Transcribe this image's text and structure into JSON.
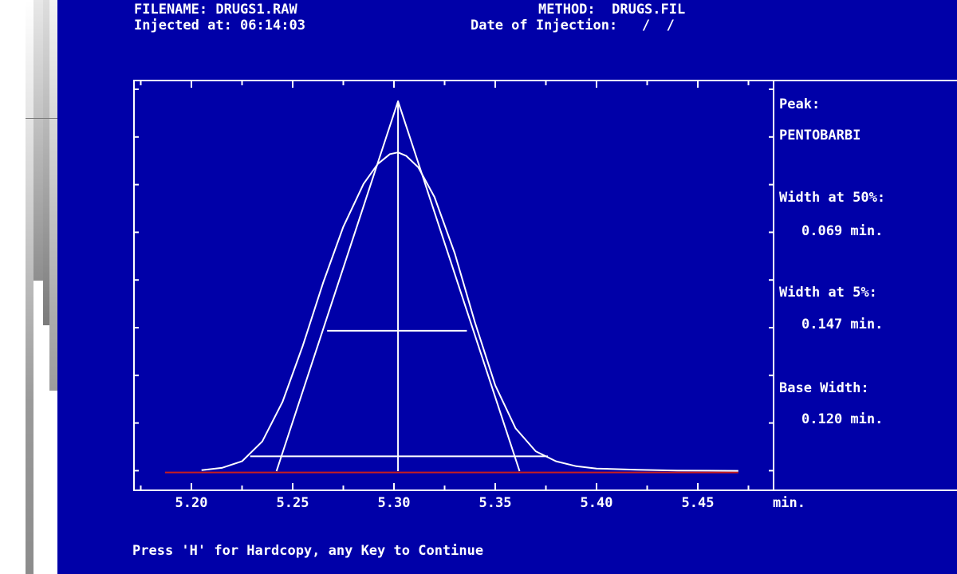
{
  "header": {
    "filename_line": "FILENAME: DRUGS1.RAW",
    "injected_line": "Injected at: 06:14:03",
    "method_line": "METHOD:  DRUGS.FIL",
    "date_line": "Date of Injection:   /  /"
  },
  "side_panel": {
    "peak_label": "Peak:",
    "peak_name": "PENTOBARBI",
    "width50_label": "Width at 50%:",
    "width50_value": "0.069 min.",
    "width5_label": "Width at 5%:",
    "width5_value": "0.147 min.",
    "base_label": "Base Width:",
    "base_value": "0.120 min."
  },
  "footer": {
    "prompt": "Press 'H' for Hardcopy, any Key to Continue"
  },
  "colors": {
    "background": "#0000a8",
    "trace": "#ffffff",
    "baseline": "#c81e1e"
  },
  "chart_data": {
    "type": "line",
    "x_unit_label": "min.",
    "x_ticks": [
      "5.20",
      "5.25",
      "5.30",
      "5.35",
      "5.40",
      "5.45"
    ],
    "xlim": [
      5.175,
      5.48
    ],
    "ylim": [
      0,
      1.0
    ],
    "peak_retention_time": 5.302,
    "series": [
      {
        "role": "peak-trace",
        "x": [
          5.205,
          5.215,
          5.225,
          5.235,
          5.245,
          5.255,
          5.265,
          5.275,
          5.285,
          5.292,
          5.298,
          5.302,
          5.306,
          5.312,
          5.32,
          5.33,
          5.34,
          5.35,
          5.36,
          5.37,
          5.38,
          5.39,
          5.4,
          5.42,
          5.44,
          5.47
        ],
        "y": [
          0.003,
          0.01,
          0.03,
          0.09,
          0.21,
          0.38,
          0.57,
          0.74,
          0.87,
          0.93,
          0.96,
          0.965,
          0.955,
          0.92,
          0.83,
          0.66,
          0.45,
          0.26,
          0.13,
          0.06,
          0.03,
          0.015,
          0.008,
          0.004,
          0.002,
          0.001
        ]
      },
      {
        "role": "tangent-triangle",
        "x": [
          5.242,
          5.302,
          5.362
        ],
        "y": [
          0.0,
          1.12,
          0.0
        ]
      }
    ],
    "height_marker": {
      "x": 5.302,
      "y": [
        0.0,
        1.12
      ]
    },
    "half_height_line": {
      "x": [
        5.267,
        5.336
      ],
      "y": 0.425
    },
    "five_percent_line": {
      "x": [
        5.229,
        5.376
      ],
      "y": 0.045
    },
    "baseline": {
      "x": [
        5.187,
        5.47
      ],
      "y": -0.004
    }
  }
}
